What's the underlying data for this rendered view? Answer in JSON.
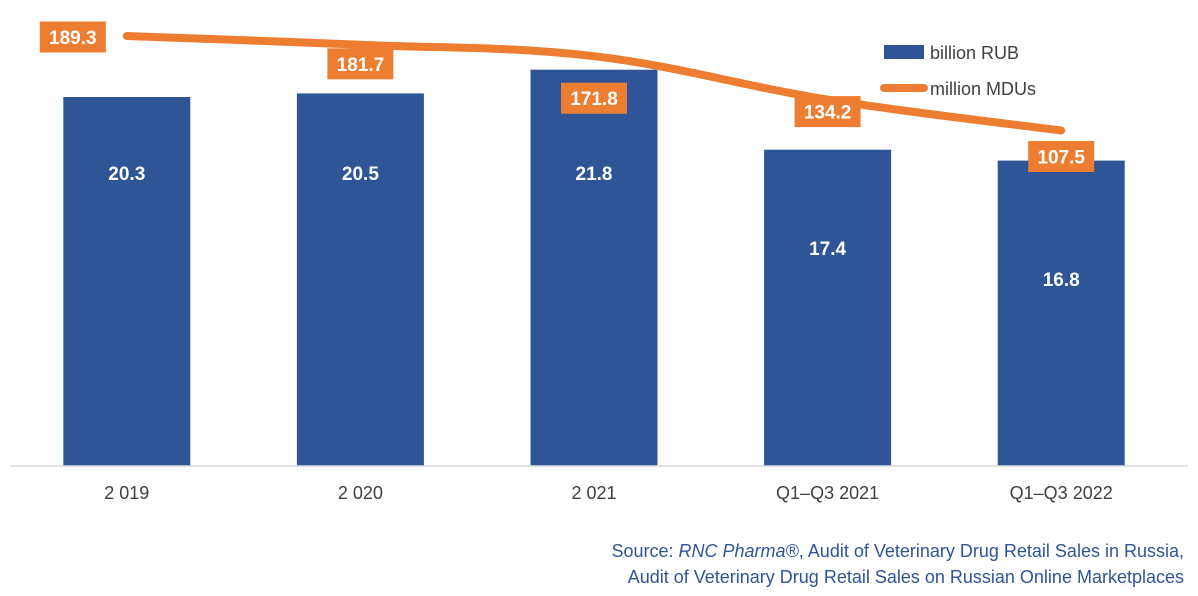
{
  "chart_data": {
    "type": "bar",
    "categories": [
      "2 019",
      "2 020",
      "2 021",
      "Q1–Q3 2021",
      "Q1–Q3 2022"
    ],
    "series": [
      {
        "name": "billion RUB",
        "type": "bar",
        "values": [
          20.3,
          20.5,
          21.8,
          17.4,
          16.8
        ],
        "color": "#2f5597"
      },
      {
        "name": "million MDUs",
        "type": "line",
        "values": [
          189.3,
          181.7,
          171.8,
          134.2,
          107.5
        ],
        "color": "#ed7d31"
      }
    ],
    "data_labels": {
      "bars": [
        "20.3",
        "20.5",
        "21.8",
        "17.4",
        "16.8"
      ],
      "line": [
        "189.3",
        "181.7",
        "171.8",
        "134.2",
        "107.5"
      ]
    },
    "legend_position": "top-right",
    "grid": false
  },
  "source": {
    "prefix": "Source: ",
    "brand": "RNC Pharma®",
    "line1_rest": ", Audit of Veterinary Drug Retail Sales in Russia,",
    "line2": "Audit of Veterinary Drug Retail Sales on Russian Online Marketplaces"
  }
}
